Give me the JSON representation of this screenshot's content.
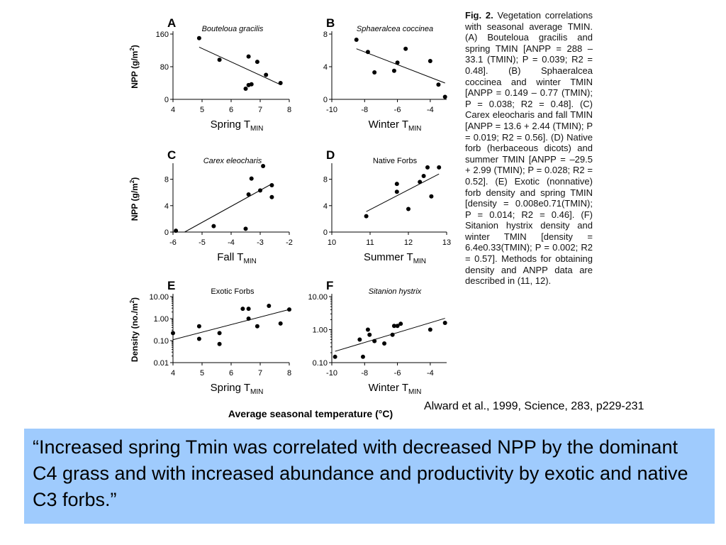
{
  "figure": {
    "bottom_label": "Average seasonal temperature (°C)",
    "caption_label": "Fig. 2.",
    "caption_text": "Vegetation correlations with seasonal average TMIN. (A) Bouteloua gracilis and spring TMIN [ANPP = 288 – 33.1 (TMIN); P = 0.039; R2 = 0.48]. (B) Sphaeralcea coccinea and winter TMIN [ANPP = 0.149 – 0.77 (TMIN); P = 0.038; R2 = 0.48]. (C) Carex eleocharis and fall TMIN [ANPP = 13.6 + 2.44 (TMIN); P = 0.019; R2 = 0.56]. (D) Native forb (herbaceous dicots) and summer TMIN [ANPP = –29.5 + 2.99 (TMIN); P = 0.028; R2 = 0.52]. (E) Exotic (nonnative) forb density and spring TMIN [density = 0.008e0.71(TMIN); P = 0.014; R2 = 0.46]. (F) Sitanion hystrix density and winter TMIN [density = 6.4e0.33(TMIN); P = 0.002; R2 = 0.57]. Methods for obtaining density and ANPP data are described in (11, 12)."
  },
  "citation": "Alward et al., 1999, Science, 283, p229-231",
  "quote": "“Increased spring Tmin was correlated with decreased NPP by the dominant C4 grass and with increased abundance and productivity by exotic and native C3 forbs.”",
  "chart_data": [
    {
      "type": "scatter",
      "panel": "A",
      "title": "Bouteloua gracilis",
      "xlabel": "Spring T",
      "xlabel_sub": "MIN",
      "ylabel": "NPP (g/m2)",
      "xlim": [
        4,
        8
      ],
      "ylim": [
        0,
        160
      ],
      "yscale": "linear",
      "xticks": [
        4,
        5,
        6,
        7,
        8
      ],
      "yticks": [
        0,
        80,
        160
      ],
      "x": [
        4.9,
        5.6,
        6.5,
        6.6,
        6.6,
        6.7,
        6.9,
        7.2,
        7.7
      ],
      "y": [
        150,
        97,
        26,
        35,
        105,
        37,
        92,
        60,
        40
      ],
      "trend": [
        [
          4.9,
          128
        ],
        [
          7.7,
          36
        ]
      ]
    },
    {
      "type": "scatter",
      "panel": "B",
      "title": "Sphaeralcea coccinea",
      "xlabel": "Winter T",
      "xlabel_sub": "MIN",
      "ylabel": "",
      "xlim": [
        -10,
        -3
      ],
      "ylim": [
        0,
        8
      ],
      "yscale": "linear",
      "xticks": [
        -10,
        -8,
        -6,
        -4
      ],
      "yticks": [
        0,
        4,
        8
      ],
      "x": [
        -8.5,
        -7.8,
        -7.4,
        -6.2,
        -6.0,
        -5.5,
        -4.0,
        -3.5,
        -3.1
      ],
      "y": [
        7.3,
        5.8,
        3.3,
        3.5,
        4.5,
        6.2,
        4.7,
        1.8,
        0.3
      ],
      "trend": [
        [
          -8.5,
          6.2
        ],
        [
          -3.1,
          2.0
        ]
      ]
    },
    {
      "type": "scatter",
      "panel": "C",
      "title": "Carex eleocharis",
      "xlabel": "Fall T",
      "xlabel_sub": "MIN",
      "ylabel": "NPP (g/m2)",
      "xlim": [
        -6,
        -2
      ],
      "ylim": [
        0,
        10
      ],
      "yscale": "linear",
      "xticks": [
        -6,
        -5,
        -4,
        -3,
        -2
      ],
      "yticks": [
        0,
        4,
        8
      ],
      "x": [
        -5.9,
        -4.6,
        -3.5,
        -3.4,
        -3.3,
        -3.0,
        -2.9,
        -2.6,
        -2.6
      ],
      "y": [
        0.2,
        0.9,
        0.5,
        5.7,
        8.1,
        6.3,
        10.0,
        7.1,
        5.3
      ],
      "trend": [
        [
          -5.6,
          0
        ],
        [
          -2.6,
          7.3
        ]
      ]
    },
    {
      "type": "scatter",
      "panel": "D",
      "title": "Native Forbs",
      "xlabel": "Summer T",
      "xlabel_sub": "MIN",
      "ylabel": "",
      "xlim": [
        10,
        13
      ],
      "ylim": [
        0,
        10
      ],
      "yscale": "linear",
      "xticks": [
        10,
        11,
        12,
        13
      ],
      "yticks": [
        0,
        4,
        8
      ],
      "x": [
        10.9,
        11.7,
        11.7,
        12.0,
        12.3,
        12.4,
        12.5,
        12.6,
        12.8
      ],
      "y": [
        2.4,
        7.3,
        6.1,
        3.5,
        7.6,
        8.5,
        9.8,
        5.4,
        9.8
      ],
      "trend": [
        [
          10.9,
          3.1
        ],
        [
          12.8,
          8.8
        ]
      ]
    },
    {
      "type": "scatter",
      "panel": "E",
      "title": "Exotic Forbs",
      "xlabel": "Spring T",
      "xlabel_sub": "MIN",
      "ylabel": "Density (no./m2)",
      "xlim": [
        4,
        8
      ],
      "ylim": [
        0.01,
        10
      ],
      "yscale": "log",
      "xticks": [
        4,
        5,
        6,
        7,
        8
      ],
      "ytick_labels": [
        "0.01",
        "0.10",
        "1.00",
        "10.00"
      ],
      "x": [
        4.0,
        4.9,
        4.9,
        5.6,
        5.6,
        6.4,
        6.6,
        6.6,
        6.9,
        7.3,
        7.7,
        8.0
      ],
      "y": [
        0.22,
        0.12,
        0.45,
        0.07,
        0.22,
        2.8,
        2.8,
        1.0,
        0.45,
        3.8,
        0.6,
        2.6
      ],
      "trend": [
        [
          4.0,
          0.11
        ],
        [
          8.0,
          2.6
        ]
      ]
    },
    {
      "type": "scatter",
      "panel": "F",
      "title": "Sitanion hystrix",
      "xlabel": "Winter T",
      "xlabel_sub": "MIN",
      "ylabel": "",
      "xlim": [
        -10,
        -3
      ],
      "ylim": [
        0.1,
        10
      ],
      "yscale": "log",
      "xticks": [
        -10,
        -8,
        -6,
        -4
      ],
      "ytick_labels": [
        "0.10",
        "1.00",
        "10.00"
      ],
      "x": [
        -9.8,
        -8.3,
        -8.1,
        -7.8,
        -7.7,
        -7.4,
        -6.8,
        -6.3,
        -6.2,
        -6.0,
        -5.8,
        -4.0,
        -3.1
      ],
      "y": [
        0.15,
        0.5,
        0.15,
        1.0,
        0.7,
        0.45,
        0.38,
        0.7,
        1.3,
        1.3,
        1.5,
        1.0,
        1.6
      ],
      "trend": [
        [
          -9.8,
          0.22
        ],
        [
          -3.1,
          2.2
        ]
      ]
    }
  ]
}
